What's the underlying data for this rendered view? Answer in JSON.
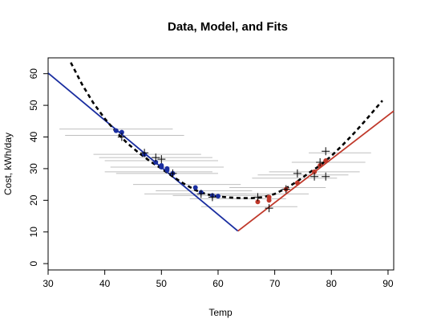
{
  "chart_data": {
    "type": "scatter",
    "title": "Data, Model, and Fits",
    "xlabel": "Temp",
    "ylabel": "Cost, kWh/day",
    "xlim": [
      30,
      91
    ],
    "ylim": [
      -2,
      65
    ],
    "xticks": [
      30,
      40,
      50,
      60,
      70,
      80,
      90
    ],
    "yticks": [
      0,
      10,
      20,
      30,
      40,
      50,
      60
    ],
    "grid": false,
    "colors": {
      "heating": "#1a2ea0",
      "cooling": "#c0392b",
      "fit": "#000000",
      "interval": "#bfbfbf",
      "observed": "#000000"
    },
    "series": [
      {
        "kind": "heating-model-line",
        "x": [
          30,
          63.5
        ],
        "y": [
          60.2,
          10.3
        ]
      },
      {
        "kind": "cooling-model-line",
        "x": [
          63.5,
          91
        ],
        "y": [
          10.3,
          48.2
        ]
      },
      {
        "kind": "dashed-fit-curve",
        "x": [
          34,
          36,
          38,
          40,
          42,
          44,
          46,
          48,
          50,
          52,
          54,
          56,
          58,
          60,
          62,
          64,
          66,
          68,
          70,
          72,
          74,
          76,
          78,
          80,
          82,
          84,
          86,
          88,
          89
        ],
        "y": [
          63.5,
          56.6,
          50.7,
          45.8,
          41.6,
          38.0,
          35.0,
          32.3,
          30.0,
          27.5,
          25.2,
          23.2,
          21.9,
          21.2,
          20.9,
          20.7,
          20.7,
          21.0,
          22.0,
          23.8,
          26.0,
          28.6,
          31.0,
          34.0,
          37.5,
          41.2,
          45.2,
          49.4,
          51.5
        ]
      },
      {
        "kind": "heating-points",
        "x": [
          42,
          43,
          47,
          49,
          50,
          50,
          51,
          51,
          52,
          56,
          57,
          59,
          60
        ],
        "y": [
          42.0,
          41.5,
          34.5,
          32.0,
          31.0,
          30.5,
          30.0,
          29.5,
          28.5,
          24.0,
          22.5,
          21.5,
          21.3
        ]
      },
      {
        "kind": "cooling-points",
        "x": [
          67,
          69,
          69,
          72,
          74,
          77,
          78,
          79
        ],
        "y": [
          19.5,
          20.0,
          21.0,
          23.5,
          25.5,
          29.0,
          31.0,
          32.5
        ]
      },
      {
        "kind": "observed-plus",
        "x": [
          43,
          47,
          49,
          50,
          52,
          57,
          59,
          67,
          69,
          72,
          74,
          77,
          78,
          79,
          79
        ],
        "y": [
          40.0,
          35.0,
          33.5,
          33.0,
          28.5,
          22.0,
          21.0,
          21.0,
          17.5,
          23.5,
          28.5,
          27.5,
          32.0,
          35.5,
          27.5
        ]
      },
      {
        "kind": "temperature-intervals",
        "y": [
          42.5,
          40.5,
          34.5,
          33.5,
          32.5,
          30.5,
          29.0,
          28.5,
          25.0,
          23.0,
          22.0,
          21.5,
          20.5,
          18.0,
          22.0,
          24.0,
          27.0,
          28.0,
          29.0,
          32.0,
          35.0
        ],
        "x_low": [
          32,
          33,
          38,
          39,
          40,
          41,
          40,
          42,
          45,
          49,
          47,
          52,
          55,
          57,
          59,
          62,
          66,
          67,
          69,
          73,
          76
        ],
        "x_high": [
          52,
          54,
          57,
          59,
          60,
          61,
          59,
          60,
          64,
          66,
          65,
          69,
          72,
          74,
          76,
          79,
          81,
          83,
          85,
          86,
          87
        ]
      }
    ]
  }
}
